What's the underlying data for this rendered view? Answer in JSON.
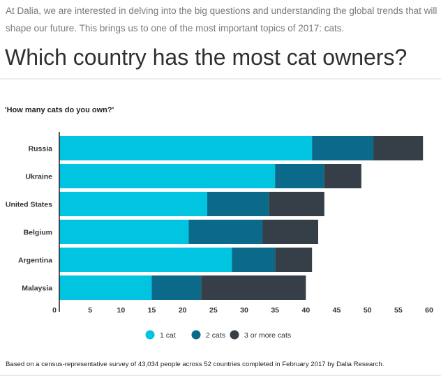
{
  "article": {
    "intro": "At Dalia, we are interested in delving into the big questions and understanding the global trends that will shape our future. This brings us to one of the most important topics of 2017: cats.",
    "headline": "Which country has the most cat owners?",
    "footnote": "Based on a census-representative survey of 43,034 people across 52 countries completed in February 2017 by Dalia Research."
  },
  "chart_data": {
    "type": "bar",
    "orientation": "horizontal",
    "stacked": true,
    "title": "'How many cats do you own?'",
    "xlabel": "",
    "ylabel": "",
    "categories": [
      "Russia",
      "Ukraine",
      "United States",
      "Belgium",
      "Argentina",
      "Malaysia"
    ],
    "series": [
      {
        "name": "1 cat",
        "color": "#00c4e0",
        "values": [
          41,
          35,
          24,
          21,
          28,
          15
        ]
      },
      {
        "name": "2 cats",
        "color": "#0b6a8a",
        "values": [
          10,
          8,
          10,
          12,
          7,
          8
        ]
      },
      {
        "name": "3 or more cats",
        "color": "#363f47",
        "values": [
          8,
          6,
          9,
          9,
          6,
          17
        ]
      }
    ],
    "xlim": [
      0,
      60
    ],
    "xticks": [
      0,
      5,
      10,
      15,
      20,
      25,
      30,
      35,
      40,
      45,
      50,
      55,
      60
    ],
    "grid": false,
    "legend_position": "bottom"
  }
}
